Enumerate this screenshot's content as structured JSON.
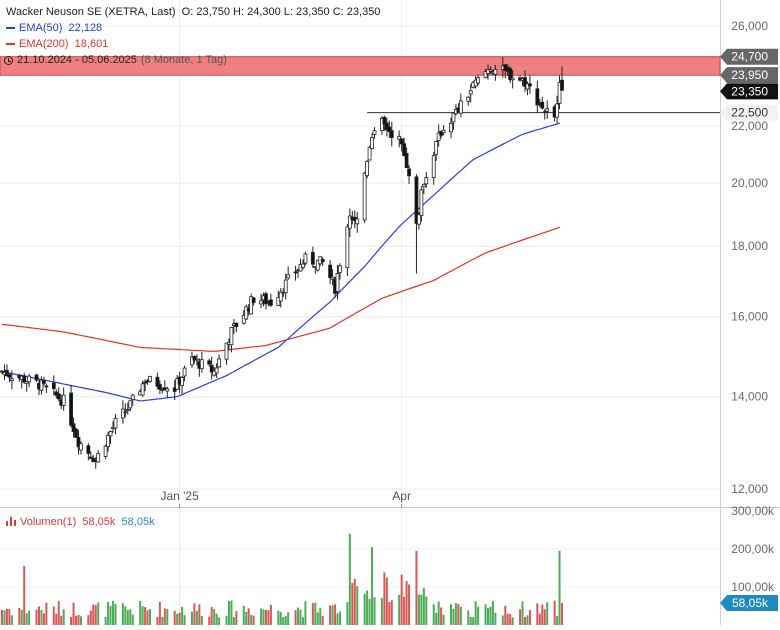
{
  "header": {
    "title": "Wacker Neuson SE (XETRA, Last)",
    "ohlc": "O: 23,750  H: 24,300  L: 23,350  C: 23,350",
    "ema50_label": "EMA(50)",
    "ema50_value": "22,128",
    "ema200_label": "EMA(200)",
    "ema200_value": "18,601",
    "date_range": "21.10.2024 - 05.06.2025",
    "range_note": "(8 Monate, 1 Tag)"
  },
  "volume_panel": {
    "label": "Volumen(1)",
    "value_red": "58,05k",
    "value_blue": "58,05k",
    "axis_labels": [
      "300,00k",
      "200,00k",
      "100,00k"
    ],
    "axis_values": [
      300000,
      200000,
      100000
    ],
    "last_badge": "58,05k"
  },
  "colors": {
    "up": "#2e9e3a",
    "down": "#d33a3a",
    "ema50": "#2a3fd6",
    "ema200": "#e0332a",
    "zone": "#f08080",
    "badge_dark": "#111111",
    "badge_gray": "#666666",
    "badge_blue": "#1f8ac0"
  },
  "chart_data": [
    {
      "type": "candlestick",
      "title": "Wacker Neuson SE (XETRA, Last)",
      "x_tick_labels": [
        "Jan '25",
        "Apr"
      ],
      "y_tick_labels": [
        "26,000",
        "24,000",
        "22,000",
        "20,000",
        "18,000",
        "16,000",
        "14,000",
        "12,000"
      ],
      "y_tick_values": [
        26,
        24,
        22,
        20,
        18,
        16,
        14,
        12
      ],
      "ylim": [
        11.8,
        26.5
      ],
      "y_scale": "log",
      "grid": true,
      "legend": "top-left",
      "resistance_zone": {
        "from": 23.95,
        "to": 24.7,
        "labels": [
          "24,700",
          "23,950"
        ]
      },
      "support_line": {
        "value": 22.5,
        "label": "22,500"
      },
      "last_price": {
        "value": 23.35,
        "label": "23,350"
      },
      "close_series_anchors": [
        {
          "date": "2024-10-21",
          "value": 14.6
        },
        {
          "date": "2024-11-05",
          "value": 14.3
        },
        {
          "date": "2024-11-15",
          "value": 13.9
        },
        {
          "date": "2024-11-21",
          "value": 13.0
        },
        {
          "date": "2024-11-28",
          "value": 12.6
        },
        {
          "date": "2024-12-06",
          "value": 13.4
        },
        {
          "date": "2024-12-12",
          "value": 13.8
        },
        {
          "date": "2024-12-18",
          "value": 14.4
        },
        {
          "date": "2024-12-30",
          "value": 14.2
        },
        {
          "date": "2025-01-06",
          "value": 14.9
        },
        {
          "date": "2025-01-15",
          "value": 14.6
        },
        {
          "date": "2025-01-22",
          "value": 15.6
        },
        {
          "date": "2025-01-31",
          "value": 16.5
        },
        {
          "date": "2025-02-07",
          "value": 16.4
        },
        {
          "date": "2025-02-14",
          "value": 17.0
        },
        {
          "date": "2025-02-21",
          "value": 17.6
        },
        {
          "date": "2025-02-28",
          "value": 17.5
        },
        {
          "date": "2025-03-05",
          "value": 16.8
        },
        {
          "date": "2025-03-11",
          "value": 19.0
        },
        {
          "date": "2025-03-14",
          "value": 18.8
        },
        {
          "date": "2025-03-19",
          "value": 21.4
        },
        {
          "date": "2025-03-24",
          "value": 22.1
        },
        {
          "date": "2025-03-31",
          "value": 21.5
        },
        {
          "date": "2025-04-04",
          "value": 20.4
        },
        {
          "date": "2025-04-07",
          "value": 18.6
        },
        {
          "date": "2025-04-10",
          "value": 20.1
        },
        {
          "date": "2025-04-17",
          "value": 21.8
        },
        {
          "date": "2025-04-24",
          "value": 22.6
        },
        {
          "date": "2025-04-30",
          "value": 23.5
        },
        {
          "date": "2025-05-07",
          "value": 24.3
        },
        {
          "date": "2025-05-14",
          "value": 24.0
        },
        {
          "date": "2025-05-21",
          "value": 23.7
        },
        {
          "date": "2025-05-28",
          "value": 22.7
        },
        {
          "date": "2025-06-02",
          "value": 22.2
        },
        {
          "date": "2025-06-04",
          "value": 23.9
        },
        {
          "date": "2025-06-05",
          "value": 23.35
        }
      ],
      "series": [
        {
          "name": "EMA(50)",
          "last_value": 22.128,
          "anchors": [
            {
              "date": "2024-10-21",
              "value": 14.6
            },
            {
              "date": "2024-11-15",
              "value": 14.3
            },
            {
              "date": "2024-12-02",
              "value": 14.1
            },
            {
              "date": "2024-12-16",
              "value": 13.9
            },
            {
              "date": "2024-12-31",
              "value": 14.0
            },
            {
              "date": "2025-01-20",
              "value": 14.5
            },
            {
              "date": "2025-02-10",
              "value": 15.2
            },
            {
              "date": "2025-03-03",
              "value": 16.4
            },
            {
              "date": "2025-03-17",
              "value": 17.4
            },
            {
              "date": "2025-03-31",
              "value": 18.6
            },
            {
              "date": "2025-04-14",
              "value": 19.6
            },
            {
              "date": "2025-04-30",
              "value": 20.8
            },
            {
              "date": "2025-05-20",
              "value": 21.7
            },
            {
              "date": "2025-06-05",
              "value": 22.13
            }
          ]
        },
        {
          "name": "EMA(200)",
          "last_value": 18.601,
          "anchors": [
            {
              "date": "2024-10-21",
              "value": 15.8
            },
            {
              "date": "2024-11-15",
              "value": 15.6
            },
            {
              "date": "2024-12-16",
              "value": 15.2
            },
            {
              "date": "2025-01-15",
              "value": 15.1
            },
            {
              "date": "2025-02-05",
              "value": 15.25
            },
            {
              "date": "2025-03-03",
              "value": 15.7
            },
            {
              "date": "2025-03-24",
              "value": 16.5
            },
            {
              "date": "2025-04-14",
              "value": 17.0
            },
            {
              "date": "2025-05-05",
              "value": 17.8
            },
            {
              "date": "2025-06-05",
              "value": 18.6
            }
          ]
        }
      ]
    },
    {
      "type": "bar",
      "title": "Volumen(1)",
      "ylim": [
        0,
        300000
      ],
      "last_value": 58050,
      "notable_bars": [
        {
          "date": "2024-10-30",
          "value": 155000
        },
        {
          "date": "2025-03-11",
          "value": 240000
        },
        {
          "date": "2025-03-20",
          "value": 205000
        },
        {
          "date": "2025-04-07",
          "value": 195000
        },
        {
          "date": "2025-06-04",
          "value": 195000
        },
        {
          "date": "2025-06-05",
          "value": 58050
        }
      ]
    }
  ]
}
